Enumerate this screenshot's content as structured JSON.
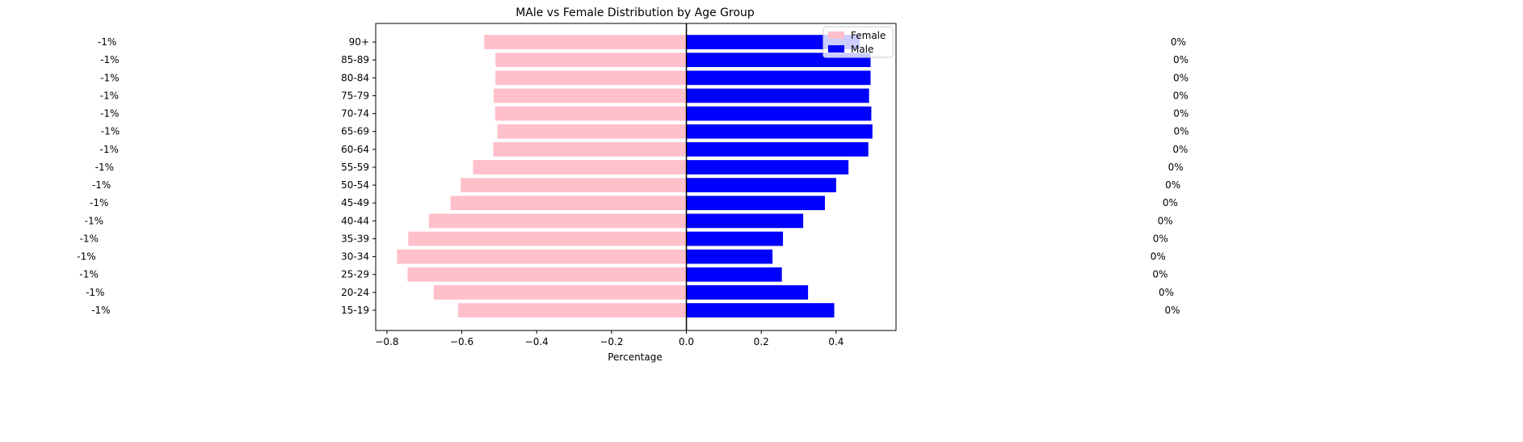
{
  "chart_data": {
    "type": "bar",
    "orientation": "horizontal",
    "title": "MAle vs Female Distribution by Age Group",
    "xlabel": "Percentage",
    "ylabel": "",
    "xlim": [
      -0.83,
      0.56
    ],
    "xticks": [
      -0.8,
      -0.6,
      -0.4,
      -0.2,
      0.0,
      0.2,
      0.4
    ],
    "xtick_labels": [
      "−0.8",
      "−0.6",
      "−0.4",
      "−0.2",
      "0.0",
      "0.2",
      "0.4"
    ],
    "categories": [
      "15-19",
      "20-24",
      "25-29",
      "30-34",
      "35-39",
      "40-44",
      "45-49",
      "50-54",
      "55-59",
      "60-64",
      "65-69",
      "70-74",
      "75-79",
      "80-84",
      "85-89",
      "90+"
    ],
    "series": [
      {
        "name": "Female",
        "color": "#ffc0cb",
        "values": [
          -0.61,
          -0.675,
          -0.745,
          -0.773,
          -0.743,
          -0.688,
          -0.63,
          -0.603,
          -0.57,
          -0.516,
          -0.505,
          -0.511,
          -0.515,
          -0.51,
          -0.51,
          -0.54
        ],
        "labels": [
          "-1%",
          "-1%",
          "-1%",
          "-1%",
          "-1%",
          "-1%",
          "-1%",
          "-1%",
          "-1%",
          "-1%",
          "-1%",
          "-1%",
          "-1%",
          "-1%",
          "-1%",
          "-1%"
        ]
      },
      {
        "name": "Male",
        "color": "#0000ff",
        "values": [
          0.395,
          0.325,
          0.255,
          0.23,
          0.258,
          0.312,
          0.37,
          0.4,
          0.433,
          0.486,
          0.497,
          0.494,
          0.488,
          0.492,
          0.492,
          0.463
        ],
        "labels": [
          "0%",
          "0%",
          "0%",
          "0%",
          "0%",
          "0%",
          "0%",
          "0%",
          "0%",
          "0%",
          "0%",
          "0%",
          "0%",
          "0%",
          "0%",
          "0%"
        ]
      }
    ],
    "legend_position": "top-right",
    "grid": false,
    "zero_line": true
  }
}
